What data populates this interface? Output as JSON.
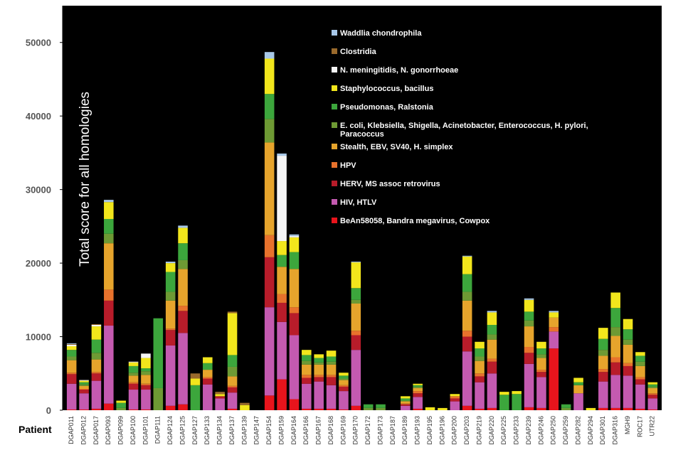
{
  "chart_data": {
    "type": "bar",
    "stacked": true,
    "ylabel": "Total score for all homologies",
    "xlabel": "Patient",
    "ylim": [
      0,
      55000
    ],
    "yticks": [
      0,
      10000,
      20000,
      30000,
      40000,
      50000
    ],
    "yticklabels": [
      "0",
      "10000",
      "20000",
      "30000",
      "40000",
      "50000"
    ],
    "grid": false,
    "legend_position": "top-right",
    "plot_background": "#000000",
    "categories": [
      "DGAP011",
      "DGAP012",
      "DGAP017",
      "DGAP093",
      "DGAP099",
      "DGAP100",
      "DGAP101",
      "DGAP111",
      "DGAP124",
      "DGAP125",
      "DGAP127",
      "DGAP133",
      "DGAP134",
      "DGAP137",
      "DGAP139",
      "DGAP147",
      "DGAP154",
      "DGAP159",
      "DGAP164",
      "DGAP166",
      "DGAP167",
      "DGAP168",
      "DGAP169",
      "DGAP170",
      "DGAP172",
      "DGAP173",
      "DGAP187",
      "DGAP189",
      "DGAP193",
      "DGAP195",
      "DGAP196",
      "DGAP200",
      "DGAP203",
      "DGAP219",
      "DGAP220",
      "DGAP225",
      "DGAP233",
      "DGAP239",
      "DGAP246",
      "DGAP250",
      "DGAP259",
      "DGAP282",
      "DGAP294",
      "DGAP301",
      "DGAP316",
      "MGH9",
      "ROC17",
      "UTR22"
    ],
    "series": [
      {
        "name": "BeAn58058, Bandra megavirus, Cowpox",
        "color": "#e8141c",
        "values": [
          100,
          100,
          200,
          900,
          0,
          100,
          100,
          0,
          600,
          800,
          0,
          0,
          0,
          200,
          0,
          0,
          2000,
          4200,
          1500,
          200,
          200,
          200,
          100,
          600,
          0,
          0,
          0,
          0,
          200,
          0,
          0,
          0,
          600,
          200,
          300,
          0,
          0,
          400,
          300,
          8400,
          0,
          0,
          0,
          300,
          300,
          300,
          200,
          100
        ]
      },
      {
        "name": "HIV, HTLV",
        "color": "#c45ab0",
        "values": [
          3500,
          2200,
          3800,
          10600,
          0,
          2700,
          2700,
          0,
          8200,
          9700,
          0,
          3500,
          1600,
          2200,
          0,
          0,
          12000,
          7800,
          8700,
          3400,
          3700,
          3200,
          2500,
          7600,
          0,
          0,
          0,
          600,
          1600,
          0,
          0,
          1200,
          7400,
          3600,
          4700,
          0,
          0,
          5900,
          4200,
          2300,
          0,
          2300,
          0,
          3600,
          4500,
          4400,
          3300,
          1500
        ]
      },
      {
        "name": "HERV, MS assoc retrovirus",
        "color": "#b81c2a",
        "values": [
          1300,
          500,
          1000,
          3400,
          0,
          800,
          600,
          0,
          2100,
          3000,
          0,
          800,
          300,
          700,
          0,
          0,
          6800,
          2600,
          3000,
          800,
          600,
          1100,
          600,
          2000,
          0,
          0,
          0,
          200,
          500,
          0,
          0,
          400,
          2000,
          800,
          1600,
          0,
          0,
          1500,
          700,
          0,
          0,
          0,
          0,
          1300,
          1700,
          1300,
          700,
          500
        ]
      },
      {
        "name": "HPV",
        "color": "#e8722c",
        "values": [
          200,
          100,
          200,
          1500,
          0,
          200,
          200,
          0,
          200,
          700,
          0,
          200,
          0,
          200,
          0,
          0,
          3000,
          1200,
          800,
          400,
          300,
          300,
          200,
          600,
          0,
          0,
          0,
          100,
          300,
          0,
          0,
          300,
          800,
          400,
          400,
          0,
          0,
          800,
          300,
          600,
          0,
          0,
          0,
          400,
          700,
          400,
          300,
          200
        ]
      },
      {
        "name": "Stealth, EBV, SV40, H. simplex",
        "color": "#e6a42c",
        "values": [
          1700,
          400,
          1700,
          6300,
          0,
          900,
          1200,
          0,
          3800,
          5000,
          0,
          1000,
          0,
          1300,
          0,
          0,
          12600,
          3700,
          5200,
          1400,
          1400,
          1400,
          700,
          3700,
          0,
          0,
          0,
          300,
          400,
          0,
          0,
          0,
          4100,
          1700,
          2600,
          0,
          0,
          2800,
          1600,
          1300,
          0,
          1100,
          0,
          1800,
          2900,
          2500,
          1500,
          700
        ]
      },
      {
        "name": "E. coli, Klebsiella, Shigella, Acinetobacter, Enterococcus, H. pylori, Paracoccus",
        "color": "#6e9a34",
        "values": [
          500,
          200,
          900,
          1300,
          300,
          400,
          500,
          3000,
          1200,
          1200,
          0,
          0,
          0,
          1300,
          0,
          0,
          3200,
          0,
          0,
          500,
          300,
          400,
          200,
          500,
          300,
          300,
          0,
          100,
          200,
          0,
          0,
          0,
          1200,
          600,
          700,
          0,
          0,
          800,
          500,
          0,
          300,
          0,
          0,
          800,
          1200,
          700,
          600,
          200
        ]
      },
      {
        "name": "Pseudomonas, Ralstonia",
        "color": "#3ca63c",
        "values": [
          900,
          300,
          1800,
          2000,
          700,
          900,
          400,
          9500,
          2700,
          2300,
          3400,
          900,
          0,
          1600,
          0,
          0,
          3400,
          1600,
          2300,
          800,
          600,
          700,
          400,
          1600,
          500,
          500,
          0,
          300,
          200,
          0,
          0,
          0,
          2400,
          1100,
          1300,
          2100,
          2200,
          1200,
          800,
          0,
          500,
          400,
          0,
          1500,
          2600,
          1400,
          800,
          300
        ]
      },
      {
        "name": "Staphylococcus, bacillus",
        "color": "#f2e61c",
        "values": [
          500,
          200,
          1800,
          2300,
          300,
          500,
          1400,
          0,
          1200,
          2100,
          900,
          800,
          300,
          5700,
          700,
          0,
          4800,
          1900,
          2000,
          700,
          500,
          800,
          400,
          3500,
          0,
          0,
          0,
          300,
          200,
          400,
          300,
          300,
          2400,
          900,
          1700,
          400,
          400,
          1600,
          900,
          700,
          0,
          600,
          300,
          1500,
          2100,
          1400,
          500,
          300
        ]
      },
      {
        "name": "N. meningitidis, N. gonorrhoeae",
        "color": "#f5f5f5",
        "values": [
          200,
          100,
          200,
          0,
          0,
          100,
          600,
          0,
          0,
          0,
          0,
          0,
          0,
          0,
          0,
          0,
          0,
          11600,
          200,
          0,
          0,
          0,
          0,
          0,
          0,
          0,
          0,
          0,
          0,
          0,
          0,
          0,
          0,
          0,
          0,
          0,
          0,
          0,
          0,
          0,
          0,
          0,
          0,
          0,
          0,
          0,
          0,
          0
        ]
      },
      {
        "name": "Clostridia",
        "color": "#9a6a2c",
        "values": [
          100,
          0,
          100,
          0,
          0,
          0,
          0,
          0,
          0,
          0,
          700,
          0,
          300,
          200,
          300,
          0,
          0,
          0,
          0,
          0,
          0,
          0,
          0,
          0,
          0,
          0,
          0,
          0,
          0,
          0,
          0,
          0,
          0,
          0,
          0,
          0,
          0,
          0,
          0,
          0,
          0,
          0,
          0,
          0,
          0,
          0,
          0,
          0
        ]
      },
      {
        "name": "Waddlia chondrophila",
        "color": "#a8c8e8",
        "values": [
          100,
          0,
          0,
          300,
          0,
          0,
          0,
          0,
          200,
          300,
          0,
          0,
          0,
          0,
          0,
          0,
          900,
          300,
          200,
          0,
          0,
          0,
          0,
          100,
          0,
          0,
          0,
          0,
          0,
          0,
          0,
          0,
          100,
          0,
          200,
          0,
          0,
          200,
          0,
          200,
          0,
          0,
          0,
          0,
          0,
          0,
          0,
          0
        ]
      }
    ]
  }
}
